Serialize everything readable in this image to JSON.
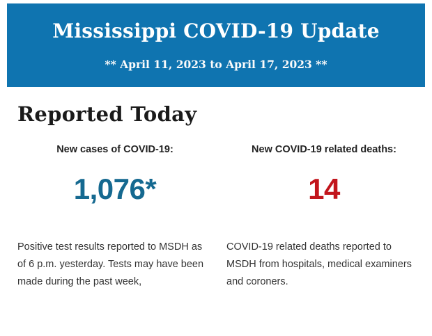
{
  "header": {
    "title": "Mississippi COVID-19 Update",
    "subtitle": "** April 11, 2023 to April 17, 2023 **",
    "background_color": "#0f74b0",
    "text_color": "#ffffff"
  },
  "section": {
    "heading": "Reported Today"
  },
  "stats": [
    {
      "label": "New cases of COVID-19:",
      "value": "1,076*",
      "value_color": "#156990",
      "description": "Positive test results reported to MSDH as of 6 p.m. yesterday. Tests may have been made during the past week,"
    },
    {
      "label": "New COVID-19 related deaths:",
      "value": "14",
      "value_color": "#c2151c",
      "description": "COVID-19 related deaths reported to MSDH from hospitals, medical examiners and coroners."
    }
  ]
}
